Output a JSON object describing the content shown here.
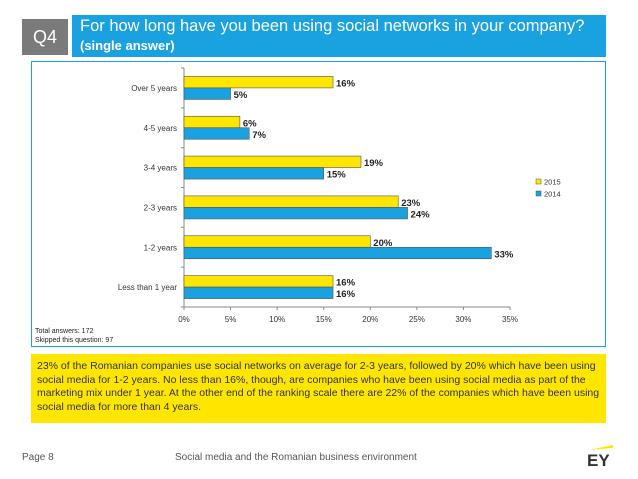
{
  "header": {
    "question_code": "Q4",
    "title": "For how long have you been using social networks in your company?",
    "title_note": "(single answer)"
  },
  "chart_data": {
    "type": "bar",
    "orientation": "horizontal",
    "categories": [
      "Over 5 years",
      "4-5 years",
      "3-4 years",
      "2-3 years",
      "1-2 years",
      "Less than 1 year"
    ],
    "series": [
      {
        "name": "2015",
        "color": "#ffe600",
        "values": [
          16,
          6,
          19,
          23,
          20,
          16
        ],
        "labels": [
          "16%",
          "6%",
          "19%",
          "23%",
          "20%",
          "16%"
        ]
      },
      {
        "name": "2014",
        "color": "#1aa1e0",
        "values": [
          5,
          7,
          15,
          24,
          33,
          16
        ],
        "labels": [
          "5%",
          "7%",
          "15%",
          "24%",
          "33%",
          "16%"
        ]
      }
    ],
    "xlim": [
      0,
      35
    ],
    "xticks": [
      "0%",
      "5%",
      "10%",
      "15%",
      "20%",
      "25%",
      "30%",
      "35%"
    ],
    "legend_position": "right",
    "title": "",
    "xlabel": "",
    "ylabel": ""
  },
  "notes": {
    "total_answers": "Total answers: 172",
    "skipped": "Skipped this question: 97"
  },
  "summary": "23% of the Romanian companies use social networks on average for 2-3 years, followed by 20% which have been using social media for 1-2 years. No less than 16%, though, are companies who have been using social media as part of the marketing mix under 1 year. At the other end of the ranking scale there are 22% of the companies which have been using social media for more than 4 years.",
  "footer": {
    "page": "Page 8",
    "report_title": "Social media and the Romanian business environment",
    "logo_text": "EY",
    "logo_color": "#333333",
    "logo_accent": "#ffe600"
  }
}
